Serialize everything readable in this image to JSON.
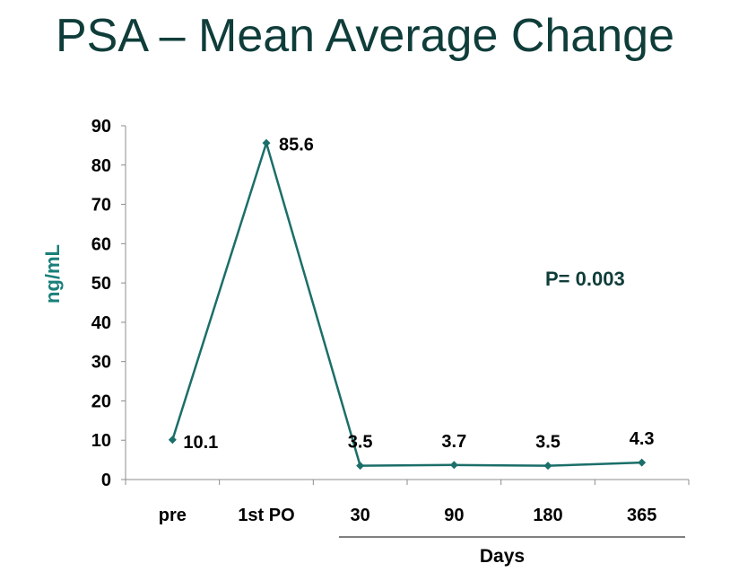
{
  "title": "PSA – Mean Average Change",
  "chart_data": {
    "type": "line",
    "categories": [
      "pre",
      "1st PO",
      "30",
      "90",
      "180",
      "365"
    ],
    "series": [
      {
        "values": [
          10.1,
          85.6,
          3.5,
          3.7,
          3.5,
          4.3
        ],
        "color": "#1b6e69"
      }
    ],
    "data_labels": [
      "10.1",
      "85.6",
      "3.5",
      "3.7",
      "3.5",
      "4.3"
    ],
    "ylabel": "ng/mL",
    "xlabel": "Days",
    "ylim": [
      0,
      90
    ],
    "yticks": [
      0,
      10,
      20,
      30,
      40,
      50,
      60,
      70,
      80,
      90
    ],
    "annotation": "P= 0.003",
    "grid": false,
    "legend": "none"
  },
  "colors": {
    "title": "#0f3d3a",
    "line": "#1b6e69",
    "ylabel": "#1a7f7a",
    "annotation": "#0f3d3a"
  }
}
